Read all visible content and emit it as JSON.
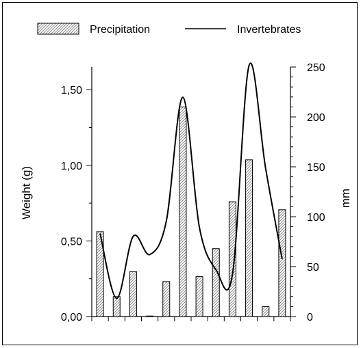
{
  "chart_data": {
    "type": "bar",
    "categories": [
      "",
      "",
      "",
      "",
      "",
      "",
      "",
      "",
      "",
      "",
      "",
      ""
    ],
    "series": [
      {
        "name": "Precipitation",
        "type": "bar",
        "axis": "right",
        "values": [
          85,
          20,
          45,
          0,
          35,
          210,
          40,
          68,
          115,
          157,
          10,
          107
        ]
      },
      {
        "name": "Invertebrates",
        "type": "line",
        "axis": "left",
        "values": [
          0.55,
          0.12,
          0.53,
          0.41,
          0.63,
          1.45,
          0.59,
          0.31,
          0.28,
          1.66,
          0.98,
          0.38
        ]
      }
    ],
    "ylabel": "Weight (g)",
    "ylabel_right": "mm",
    "ylim": [
      0,
      1.65
    ],
    "ylim_right": [
      0,
      250
    ],
    "yticks": [
      "0,00",
      "0,50",
      "1,00",
      "1,50"
    ],
    "yticks_right": [
      "0",
      "50",
      "100",
      "150",
      "200",
      "250"
    ],
    "legend_position": "top",
    "grid": false
  }
}
